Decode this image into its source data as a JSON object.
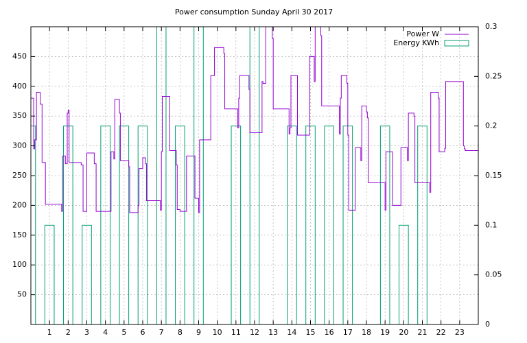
{
  "chart_data": {
    "type": "line",
    "title": "Power consumption Sunday April 30 2017",
    "xlim": [
      0,
      24
    ],
    "xticks": [
      1,
      2,
      3,
      4,
      5,
      6,
      7,
      8,
      9,
      10,
      11,
      12,
      13,
      14,
      15,
      16,
      17,
      18,
      19,
      20,
      21,
      22,
      23
    ],
    "ylim": [
      0,
      500
    ],
    "yticks": [
      50,
      100,
      150,
      200,
      250,
      300,
      350,
      400,
      450
    ],
    "y2lim": [
      0,
      0.3
    ],
    "y2ticks": [
      0,
      0.05,
      0.1,
      0.15,
      0.2,
      0.25,
      0.3
    ],
    "grid": true,
    "legend": "top-right",
    "series": [
      {
        "name": "Power W",
        "type": "step",
        "color": "#9400d3",
        "x": [
          0,
          0.15,
          0.2,
          0.3,
          0.5,
          0.6,
          0.78,
          1.65,
          1.7,
          1.85,
          1.95,
          2.0,
          2.05,
          2.7,
          2.8,
          3.0,
          3.4,
          3.5,
          4.3,
          4.45,
          4.5,
          4.75,
          4.8,
          5.25,
          5.3,
          5.75,
          5.8,
          6.0,
          6.15,
          6.2,
          6.95,
          7.0,
          7.05,
          7.45,
          7.8,
          7.85,
          8.0,
          8.35,
          8.8,
          9.0,
          9.05,
          9.65,
          9.85,
          10.35,
          10.4,
          11.1,
          11.15,
          11.2,
          11.7,
          11.75,
          12.4,
          12.45,
          12.6,
          12.95,
          13.0,
          13.85,
          13.9,
          13.95,
          14.3,
          14.95,
          15.2,
          15.25,
          15.55,
          15.6,
          16.55,
          16.6,
          16.65,
          16.95,
          17.0,
          17.05,
          17.4,
          17.7,
          17.75,
          18.0,
          18.05,
          18.1,
          19.0,
          19.05,
          19.4,
          19.85,
          20.2,
          20.25,
          20.55,
          20.6,
          21.4,
          21.45,
          21.85,
          21.9,
          22.2,
          22.25,
          23.2,
          23.25,
          23.3,
          24
        ],
        "values": [
          380,
          295,
          310,
          390,
          370,
          272,
          202,
          190,
          283,
          270,
          355,
          360,
          272,
          268,
          190,
          288,
          270,
          190,
          290,
          278,
          378,
          355,
          275,
          265,
          188,
          200,
          262,
          280,
          270,
          208,
          192,
          290,
          383,
          292,
          268,
          193,
          190,
          283,
          212,
          188,
          310,
          418,
          465,
          455,
          362,
          330,
          380,
          418,
          395,
          322,
          408,
          405,
          500,
          480,
          362,
          320,
          330,
          418,
          318,
          450,
          408,
          500,
          485,
          367,
          320,
          380,
          418,
          405,
          318,
          192,
          297,
          275,
          367,
          357,
          347,
          238,
          192,
          290,
          200,
          297,
          275,
          355,
          350,
          238,
          222,
          390,
          380,
          290,
          296,
          408,
          300,
          295,
          292,
          292
        ]
      },
      {
        "name": "Energy KWh",
        "type": "boxes",
        "color": "#009e73",
        "axis": "y2",
        "x": [
          0,
          1,
          2,
          3,
          4,
          5,
          6,
          7,
          8,
          9,
          10,
          11,
          12,
          13,
          14,
          15,
          16,
          17,
          18,
          19,
          20,
          21,
          22,
          23
        ],
        "values": [
          0.2,
          0.1,
          0.2,
          0.1,
          0.2,
          0.2,
          0.2,
          0.3,
          0.2,
          0.3,
          0,
          0.2,
          0.3,
          0,
          0.2,
          0.2,
          0.2,
          0.2,
          0,
          0.2,
          0.1,
          0.2,
          0,
          0
        ]
      }
    ]
  }
}
